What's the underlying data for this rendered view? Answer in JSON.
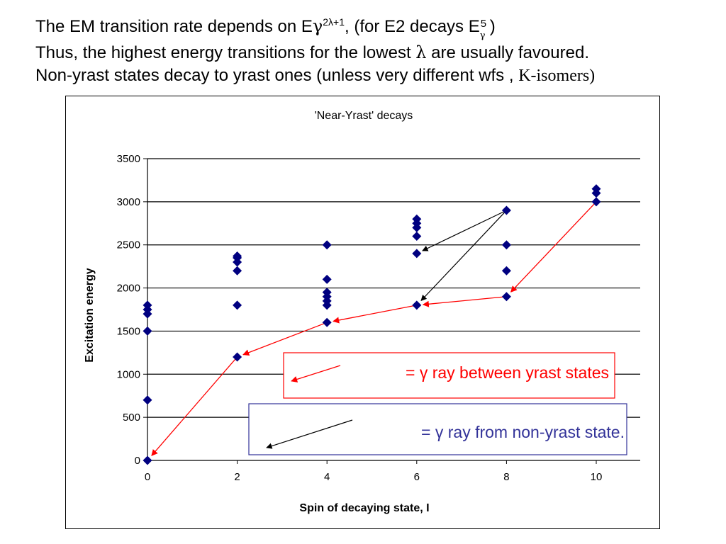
{
  "header": {
    "line1": {
      "a": "The EM transition rate depends on E",
      "gamma": "γ",
      "sup": "2λ+1",
      "b": ", (for E2 decays E",
      "sub": "γ",
      "sup2": "5",
      "c": ")"
    },
    "line2": {
      "a": "Thus, the highest energy transitions for the lowest ",
      "lambda": "λ",
      "b": "  are usually favoured."
    },
    "line3": {
      "a": "Non-yrast states decay to yrast ones (unless very different wfs , ",
      "b": "K-isomers)"
    }
  },
  "chart_data": {
    "type": "scatter",
    "title": "'Near-Yrast' decays",
    "xlabel": "Spin of decaying state, I",
    "ylabel": "Excitation energy",
    "xlim": [
      0,
      11
    ],
    "ylim": [
      0,
      3500
    ],
    "xticks": [
      0,
      2,
      4,
      6,
      8,
      10
    ],
    "yticks": [
      0,
      500,
      1000,
      1500,
      2000,
      2500,
      3000,
      3500
    ],
    "grid": "horizontal",
    "marker_color": "#000080",
    "points": [
      [
        0,
        0
      ],
      [
        0,
        700
      ],
      [
        0,
        1500
      ],
      [
        0,
        1700
      ],
      [
        0,
        1750
      ],
      [
        0,
        1800
      ],
      [
        2,
        1200
      ],
      [
        2,
        1800
      ],
      [
        2,
        2200
      ],
      [
        2,
        2300
      ],
      [
        2,
        2350
      ],
      [
        2,
        2370
      ],
      [
        4,
        1600
      ],
      [
        4,
        1800
      ],
      [
        4,
        1850
      ],
      [
        4,
        1900
      ],
      [
        4,
        1950
      ],
      [
        4,
        2100
      ],
      [
        4,
        2500
      ],
      [
        6,
        1800
      ],
      [
        6,
        2400
      ],
      [
        6,
        2600
      ],
      [
        6,
        2700
      ],
      [
        6,
        2750
      ],
      [
        6,
        2800
      ],
      [
        8,
        1900
      ],
      [
        8,
        2200
      ],
      [
        8,
        2500
      ],
      [
        8,
        2900
      ],
      [
        10,
        3000
      ],
      [
        10,
        3100
      ],
      [
        10,
        3150
      ]
    ],
    "yrast_transitions": [
      [
        [
          2,
          1200
        ],
        [
          0,
          0
        ]
      ],
      [
        [
          4,
          1600
        ],
        [
          2,
          1200
        ]
      ],
      [
        [
          6,
          1800
        ],
        [
          4,
          1600
        ]
      ],
      [
        [
          8,
          1900
        ],
        [
          6,
          1800
        ]
      ],
      [
        [
          10,
          3000
        ],
        [
          8,
          1900
        ]
      ]
    ],
    "nonyrast_transitions": [
      [
        [
          8,
          2900
        ],
        [
          6,
          2400
        ]
      ],
      [
        [
          8,
          2900
        ],
        [
          6,
          1800
        ]
      ]
    ],
    "yrast_color": "#ff0000",
    "nonyrast_color": "#000000",
    "legend": {
      "yrast_label": "= γ  ray between yrast states",
      "yrast_text_color": "#ff0000",
      "yrast_border_color": "#ff0000",
      "nonyrast_label": "= γ  ray from non-yrast state.",
      "nonyrast_text_color": "#333399",
      "nonyrast_border_color": "#333399"
    }
  }
}
